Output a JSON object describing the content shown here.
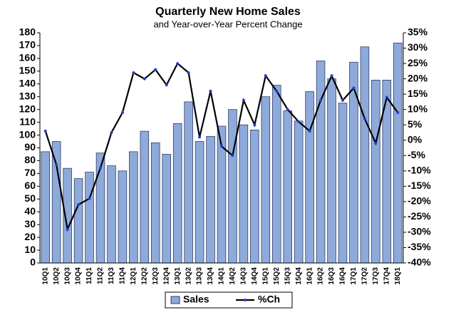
{
  "chart_data": {
    "type": "bar_line",
    "title": "Quarterly New Home Sales",
    "subtitle": "and Year-over-Year Percent Change",
    "categories": [
      "10Q1",
      "10Q2",
      "10Q3",
      "10Q4",
      "11Q1",
      "11Q2",
      "11Q3",
      "11Q4",
      "12Q1",
      "12Q2",
      "12Q3",
      "12Q4",
      "13Q1",
      "13Q2",
      "13Q3",
      "13Q4",
      "14Q1",
      "14Q2",
      "14Q3",
      "14Q4",
      "15Q1",
      "15Q2",
      "15Q3",
      "15Q4",
      "16Q1",
      "16Q2",
      "16Q3",
      "16Q4",
      "17Q1",
      "17Q2",
      "17Q3",
      "17Q4",
      "18Q1"
    ],
    "series": [
      {
        "name": "Sales",
        "type": "bar",
        "color": "#8eaadb",
        "values": [
          87,
          95,
          74,
          66,
          71,
          86,
          76,
          72,
          87,
          103,
          94,
          85,
          109,
          126,
          95,
          99,
          107,
          120,
          108,
          104,
          130,
          139,
          119,
          111,
          134,
          158,
          144,
          125,
          157,
          169,
          143,
          143,
          172
        ]
      },
      {
        "name": "%Ch",
        "type": "line",
        "axis": "y2",
        "color": "#000000",
        "marker_color": "#1f3fd8",
        "values": [
          3,
          -8,
          -29,
          -21,
          -19,
          -9,
          2.5,
          9,
          22,
          20,
          23,
          18,
          25,
          22,
          1,
          16,
          -2,
          -5,
          13,
          5,
          21,
          16,
          10,
          6,
          3,
          13,
          21,
          13,
          17,
          7,
          -1,
          14,
          9
        ]
      }
    ],
    "ylim": [
      0,
      180
    ],
    "yticks": [
      0,
      10,
      20,
      30,
      40,
      50,
      60,
      70,
      80,
      90,
      100,
      110,
      120,
      130,
      140,
      150,
      160,
      170,
      180
    ],
    "y2lim": [
      -40,
      35
    ],
    "y2ticks": [
      {
        "value": -40,
        "label": "-40%"
      },
      {
        "value": -35,
        "label": "-35%"
      },
      {
        "value": -30,
        "label": "-30%"
      },
      {
        "value": -25,
        "label": "-25%"
      },
      {
        "value": -20,
        "label": "-20%"
      },
      {
        "value": -15,
        "label": "-15%"
      },
      {
        "value": -10,
        "label": "-10%"
      },
      {
        "value": -5,
        "label": "-5%"
      },
      {
        "value": 0,
        "label": "0%"
      },
      {
        "value": 5,
        "label": "5%"
      },
      {
        "value": 10,
        "label": "10%"
      },
      {
        "value": 15,
        "label": "15%"
      },
      {
        "value": 20,
        "label": "20%"
      },
      {
        "value": 25,
        "label": "25%"
      },
      {
        "value": 30,
        "label": "30%"
      },
      {
        "value": 35,
        "label": "35%"
      }
    ],
    "grid": false
  }
}
